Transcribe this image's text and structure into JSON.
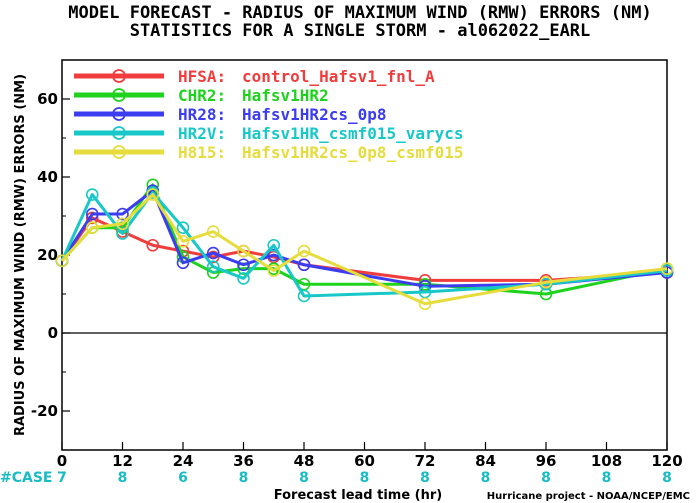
{
  "title": {
    "line1": "MODEL FORECAST - RADIUS OF MAXIMUM WIND (RMW) ERRORS (NM)",
    "line2": "STATISTICS FOR A SINGLE STORM - al062022_EARL"
  },
  "credit": "Hurricane project - NOAA/NCEP/EMC",
  "case_label": "#CASE",
  "colors": {
    "HFSA": "#f03c3c",
    "CHR2": "#1ed21e",
    "HR28": "#3c3cf0",
    "HR2V": "#18c8c8",
    "H815": "#e6dc3c"
  },
  "chart_data": {
    "type": "line",
    "xlabel": "Forecast lead time (hr)",
    "ylabel": "RADIUS OF MAXIMUM WIND (RMW) ERRORS (NM)",
    "xlim": [
      0,
      120
    ],
    "ylim": [
      -30,
      70
    ],
    "xticks": [
      "0",
      "12",
      "24",
      "36",
      "48",
      "60",
      "72",
      "84",
      "96",
      "108",
      "120"
    ],
    "yticks": [
      "-20",
      "0",
      "20",
      "40",
      "60"
    ],
    "case_x": [
      0,
      12,
      24,
      36,
      48,
      60,
      72,
      84,
      96,
      108,
      120
    ],
    "case_counts": [
      "7",
      "8",
      "6",
      "8",
      "8",
      "8",
      "8",
      "8",
      "8",
      "8",
      "8"
    ],
    "grid": false,
    "legend": "top-left",
    "x": [
      0,
      6,
      12,
      18,
      24,
      30,
      36,
      42,
      48,
      72,
      96,
      120
    ],
    "series": [
      {
        "key": "HFSA",
        "label": "HFSA:",
        "name": "control_Hafsv1_fnl_A",
        "values": [
          18.5,
          29.5,
          26.0,
          22.5,
          21.0,
          19.5,
          21.0,
          19.5,
          17.5,
          13.5,
          13.5,
          15.5
        ]
      },
      {
        "key": "CHR2",
        "label": "CHR2:",
        "name": "Hafsv1HR2",
        "values": [
          18.5,
          27.0,
          27.0,
          38.0,
          19.5,
          15.5,
          16.5,
          16.5,
          12.5,
          12.5,
          10.0,
          16.5
        ]
      },
      {
        "key": "HR28",
        "label": "HR28:",
        "name": "Hafsv1HR2cs_0p8",
        "values": [
          18.5,
          30.5,
          30.5,
          36.5,
          18.0,
          20.5,
          17.5,
          20.0,
          17.5,
          12.0,
          12.5,
          15.5
        ]
      },
      {
        "key": "HR2V",
        "label": "HR2V:",
        "name": "Hafsv1HR_csmf015_varycs",
        "values": [
          18.5,
          35.5,
          25.5,
          36.0,
          27.0,
          17.0,
          14.0,
          22.5,
          9.5,
          10.5,
          12.5,
          16.0
        ]
      },
      {
        "key": "H815",
        "label": "H815:",
        "name": "Hafsv1HR2cs_0p8_csmf015",
        "values": [
          18.5,
          27.0,
          28.0,
          35.5,
          23.5,
          26.0,
          21.0,
          16.0,
          21.0,
          7.5,
          13.0,
          16.5
        ]
      }
    ]
  }
}
